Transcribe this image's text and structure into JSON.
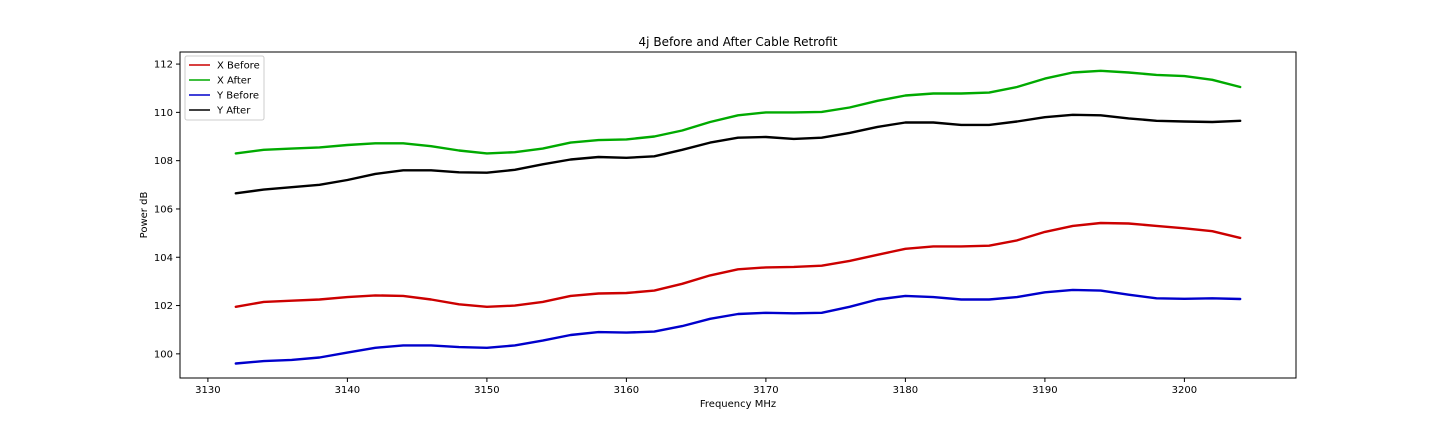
{
  "chart_data": {
    "type": "line",
    "title": "4j Before and After Cable Retrofit",
    "xlabel": "Frequency MHz",
    "ylabel": "Power dB",
    "xlim": [
      3128.0,
      3208.0
    ],
    "ylim": [
      99.0,
      112.5
    ],
    "xticks": [
      3130,
      3140,
      3150,
      3160,
      3170,
      3180,
      3190,
      3200
    ],
    "yticks": [
      100,
      102,
      104,
      106,
      108,
      110,
      112
    ],
    "grid": false,
    "legend_position": "top-left",
    "x": [
      3132,
      3134,
      3136,
      3138,
      3140,
      3142,
      3144,
      3146,
      3148,
      3150,
      3152,
      3154,
      3156,
      3158,
      3160,
      3162,
      3164,
      3166,
      3168,
      3170,
      3172,
      3174,
      3176,
      3178,
      3180,
      3182,
      3184,
      3186,
      3188,
      3190,
      3192,
      3194,
      3196,
      3198,
      3200,
      3202,
      3204
    ],
    "series": [
      {
        "name": "X Before",
        "color": "#cc0000",
        "values": [
          101.95,
          102.15,
          102.2,
          102.25,
          102.35,
          102.42,
          102.4,
          102.25,
          102.05,
          101.95,
          102.0,
          102.15,
          102.4,
          102.5,
          102.52,
          102.62,
          102.9,
          103.25,
          103.5,
          103.58,
          103.6,
          103.65,
          103.85,
          104.1,
          104.35,
          104.45,
          104.45,
          104.48,
          104.7,
          105.05,
          105.3,
          105.42,
          105.4,
          105.3,
          105.2,
          105.08,
          104.8
        ]
      },
      {
        "name": "X After",
        "color": "#00aa00",
        "values": [
          108.3,
          108.45,
          108.5,
          108.55,
          108.65,
          108.72,
          108.72,
          108.6,
          108.42,
          108.3,
          108.35,
          108.5,
          108.75,
          108.85,
          108.88,
          109.0,
          109.25,
          109.6,
          109.88,
          110.0,
          110.0,
          110.02,
          110.2,
          110.48,
          110.7,
          110.78,
          110.78,
          110.82,
          111.05,
          111.4,
          111.65,
          111.72,
          111.65,
          111.55,
          111.5,
          111.35,
          111.05
        ]
      },
      {
        "name": "Y Before",
        "color": "#0000cc",
        "values": [
          99.6,
          99.7,
          99.75,
          99.85,
          100.05,
          100.25,
          100.35,
          100.35,
          100.28,
          100.25,
          100.35,
          100.55,
          100.78,
          100.9,
          100.88,
          100.92,
          101.15,
          101.45,
          101.65,
          101.7,
          101.68,
          101.7,
          101.95,
          102.25,
          102.4,
          102.35,
          102.25,
          102.25,
          102.35,
          102.55,
          102.65,
          102.62,
          102.45,
          102.3,
          102.28,
          102.3,
          102.27
        ]
      },
      {
        "name": "Y After",
        "color": "#000000",
        "values": [
          106.65,
          106.8,
          106.9,
          107.0,
          107.2,
          107.45,
          107.6,
          107.6,
          107.52,
          107.5,
          107.62,
          107.85,
          108.05,
          108.15,
          108.12,
          108.18,
          108.45,
          108.75,
          108.95,
          108.98,
          108.9,
          108.95,
          109.15,
          109.4,
          109.58,
          109.58,
          109.48,
          109.48,
          109.62,
          109.8,
          109.9,
          109.88,
          109.75,
          109.65,
          109.62,
          109.6,
          109.65
        ]
      }
    ]
  }
}
